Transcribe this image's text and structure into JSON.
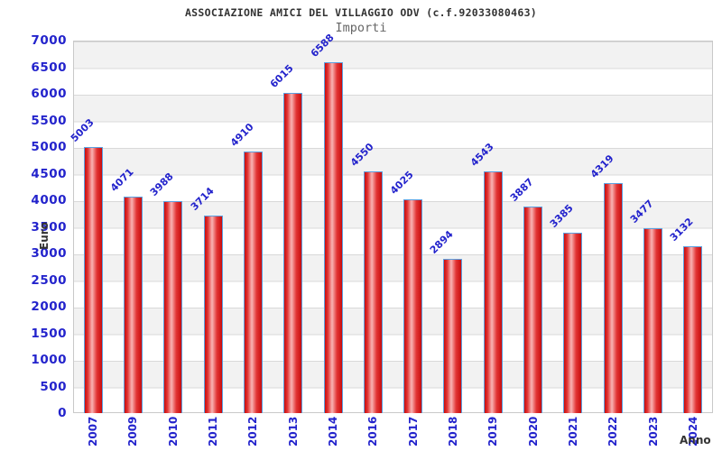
{
  "chart_data": {
    "type": "bar",
    "title": "ASSOCIAZIONE AMICI DEL VILLAGGIO ODV (c.f.92033080463)",
    "subtitle": "Importi",
    "xlabel": "Anno",
    "ylabel": "Euro",
    "categories": [
      "2007",
      "2009",
      "2010",
      "2011",
      "2012",
      "2013",
      "2014",
      "2016",
      "2017",
      "2018",
      "2019",
      "2020",
      "2021",
      "2022",
      "2023",
      "2024"
    ],
    "values": [
      5003,
      4071,
      3988,
      3714,
      4910,
      6015,
      6588,
      4550,
      4025,
      2894,
      4543,
      3887,
      3385,
      4319,
      3477,
      3132
    ],
    "ylim": [
      0,
      7000
    ],
    "ytick_step": 500,
    "grid": true,
    "legend": false,
    "background_bands": true,
    "colors": {
      "label_blue": "#2323cc",
      "bar_edge": "#c80d0d",
      "bar_mid": "#f9b4b4",
      "bar_inner": "#e23535",
      "bar_border": "#5ba0e0",
      "band_gray": "#f2f2f2",
      "gridline": "#d9d9d9",
      "plot_border": "#c9c9c9",
      "axis_title": "#333333",
      "subtitle_gray": "#666666",
      "title_color": "#333333"
    }
  }
}
